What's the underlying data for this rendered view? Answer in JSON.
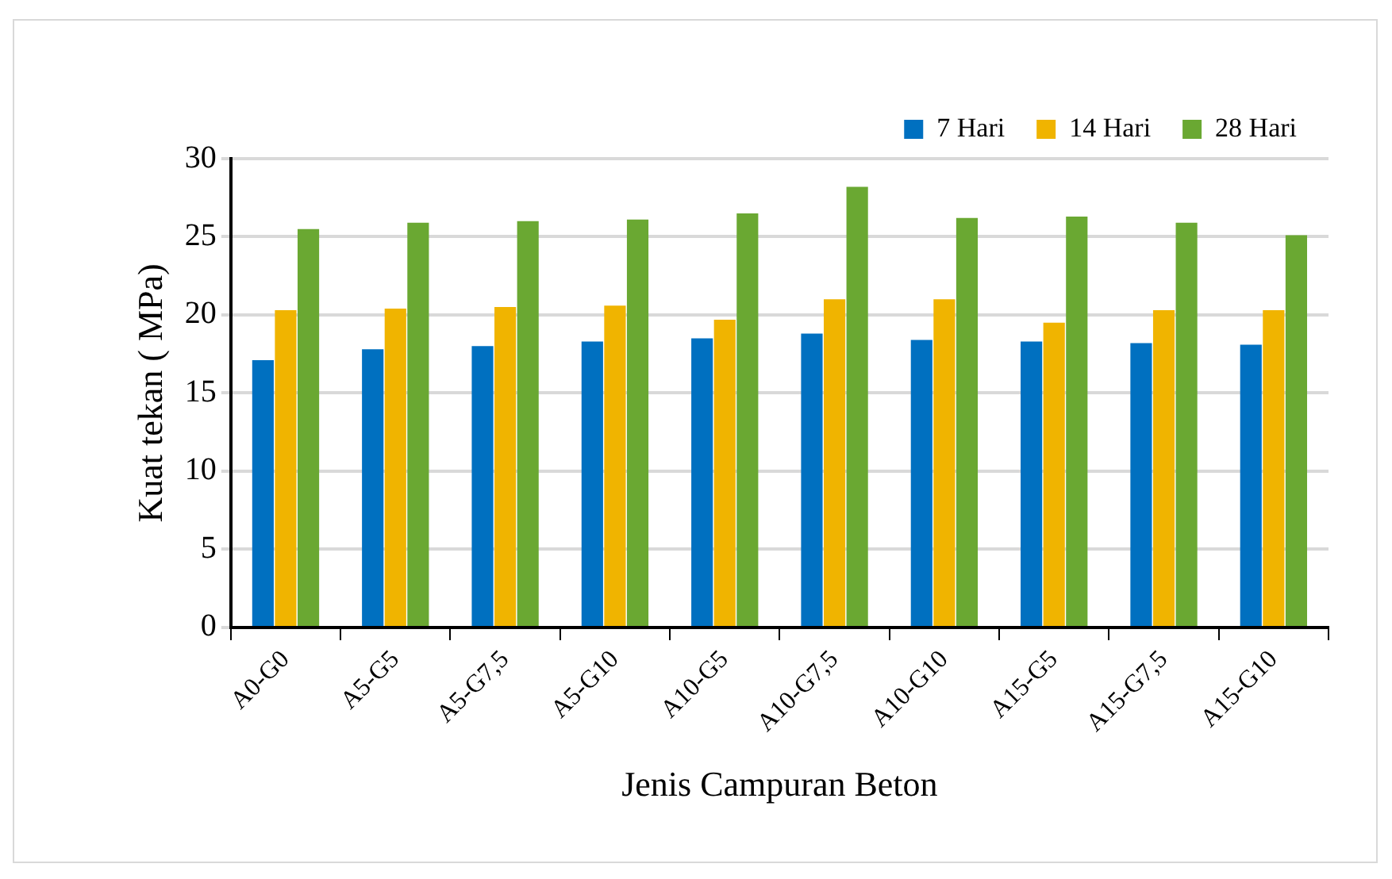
{
  "chart_data": {
    "type": "bar",
    "xlabel": "Jenis Campuran Beton",
    "ylabel": "Kuat tekan ( MPa)",
    "categories": [
      "A0-G0",
      "A5-G5",
      "A5-G7,5",
      "A5-G10",
      "A10-G5",
      "A10-G7,5",
      "A10-G10",
      "A15-G5",
      "A15-G7,5",
      "A15-G10"
    ],
    "series": [
      {
        "name": "7 Hari",
        "color": "#0070c0",
        "values": [
          17.1,
          17.8,
          18.0,
          18.3,
          18.5,
          18.8,
          18.4,
          18.3,
          18.2,
          18.1
        ]
      },
      {
        "name": "14 Hari",
        "color": "#f0b400",
        "values": [
          20.3,
          20.4,
          20.5,
          20.6,
          19.7,
          21.0,
          21.0,
          19.5,
          20.3,
          20.3
        ]
      },
      {
        "name": "28 Hari",
        "color": "#6aa832",
        "values": [
          25.5,
          25.9,
          26.0,
          26.1,
          26.5,
          28.2,
          26.2,
          26.3,
          25.9,
          25.1
        ]
      }
    ],
    "ylim": [
      0,
      30
    ],
    "yticks": [
      0,
      5,
      10,
      15,
      20,
      25,
      30
    ],
    "grid": "y",
    "legend": "top right"
  }
}
